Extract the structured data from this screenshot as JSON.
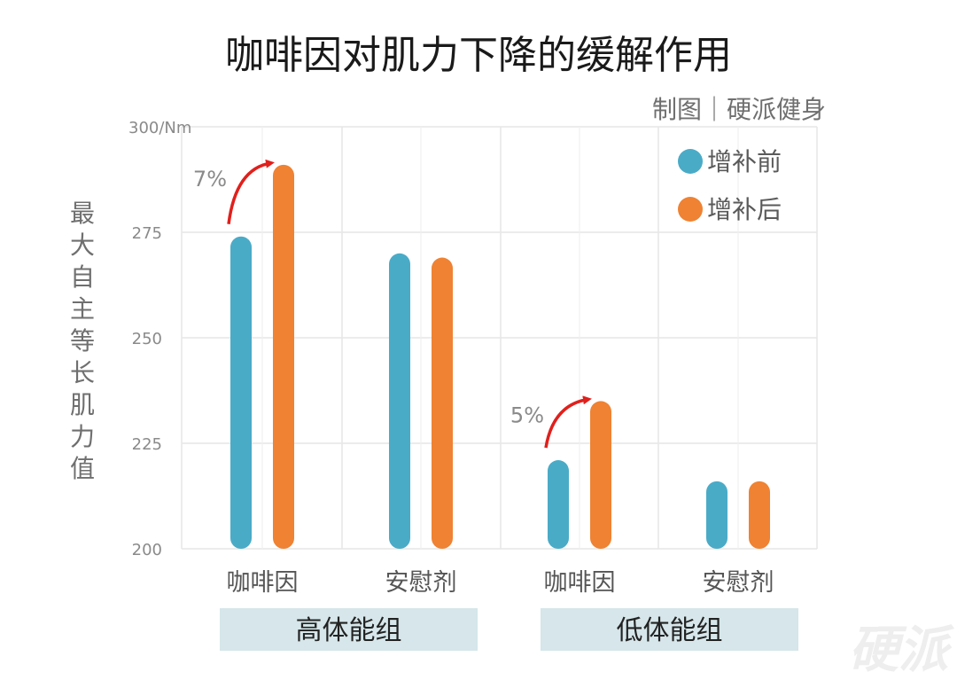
{
  "title": "咖啡因对肌力下降的缓解作用",
  "credit": "制图｜硬派健身",
  "watermark": "硬派",
  "colors": {
    "before": "#4aabc7",
    "after": "#ef8233",
    "arrow": "#e0201c",
    "group_box": "#d6e6ea",
    "grid": "#e6e6e6"
  },
  "chart_data": {
    "type": "bar",
    "ylabel": "最大自主等长肌力值",
    "yunit_label": "300/Nm",
    "ylim": [
      200,
      300
    ],
    "yticks": [
      200,
      225,
      250,
      275,
      300
    ],
    "ytick_labels": [
      "200",
      "225",
      "250",
      "275",
      "300/Nm"
    ],
    "categories": [
      "咖啡因",
      "安慰剂",
      "咖啡因",
      "安慰剂"
    ],
    "groups": [
      {
        "label": "高体能组",
        "categories": [
          "咖啡因",
          "安慰剂"
        ]
      },
      {
        "label": "低体能组",
        "categories": [
          "咖啡因",
          "安慰剂"
        ]
      }
    ],
    "series": [
      {
        "name": "增补前",
        "values": [
          274,
          270,
          221,
          216
        ]
      },
      {
        "name": "增补后",
        "values": [
          291,
          269,
          235,
          216
        ]
      }
    ],
    "annotations": [
      {
        "text": "7%",
        "category_index": 0
      },
      {
        "text": "5%",
        "category_index": 2
      }
    ],
    "legend_position": "top-right",
    "grid": true
  }
}
